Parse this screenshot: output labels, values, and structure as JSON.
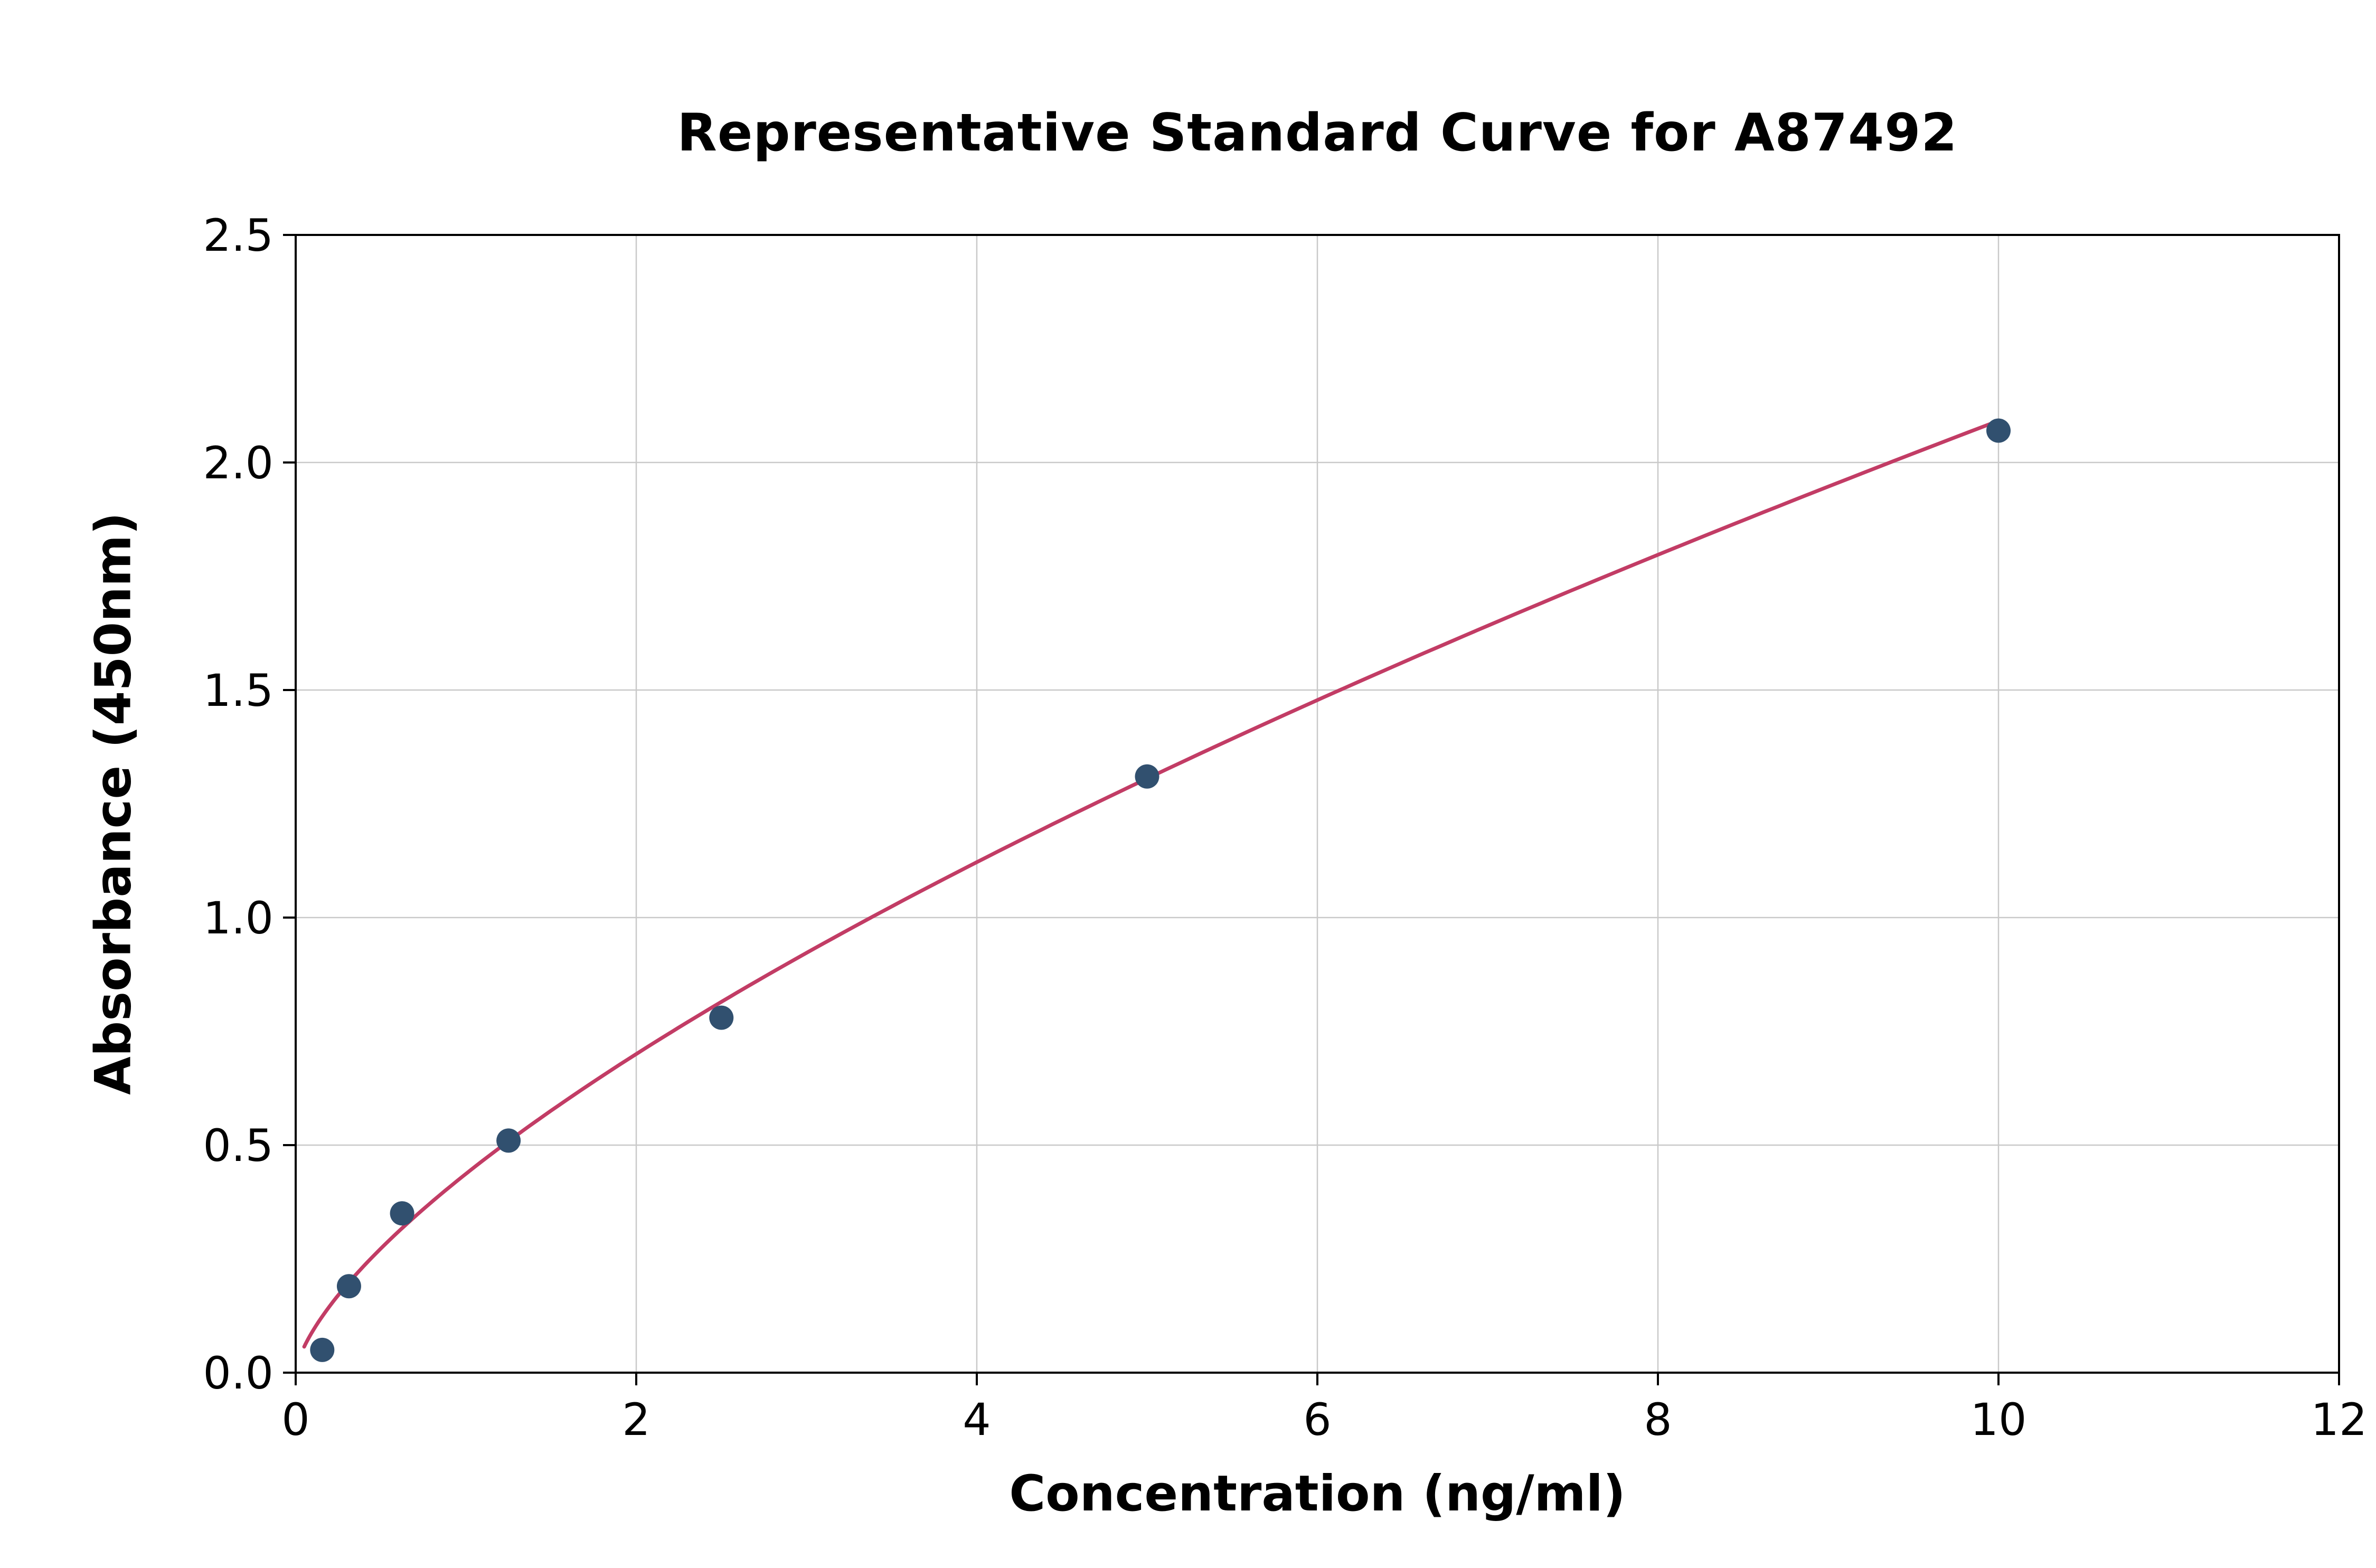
{
  "chart_data": {
    "type": "scatter",
    "title": "Representative Standard Curve for A87492",
    "xlabel": "Concentration (ng/ml)",
    "ylabel": "Absorbance (450nm)",
    "xlim": [
      0,
      12
    ],
    "ylim": [
      0,
      2.5
    ],
    "grid": true,
    "legend": "none",
    "xticks": {
      "values": [
        0,
        2,
        4,
        6,
        8,
        10,
        12
      ],
      "labels": [
        "0",
        "2",
        "4",
        "6",
        "8",
        "10",
        "12"
      ]
    },
    "yticks": {
      "values": [
        0,
        0.5,
        1.0,
        1.5,
        2.0,
        2.5
      ],
      "labels": [
        "0.0",
        "0.5",
        "1.0",
        "1.5",
        "2.0",
        "2.5"
      ]
    },
    "points": [
      {
        "x": 0.156,
        "y": 0.05
      },
      {
        "x": 0.313,
        "y": 0.19
      },
      {
        "x": 0.625,
        "y": 0.35
      },
      {
        "x": 1.25,
        "y": 0.51
      },
      {
        "x": 2.5,
        "y": 0.78
      },
      {
        "x": 5.0,
        "y": 1.31
      },
      {
        "x": 10.0,
        "y": 2.07
      }
    ],
    "fit_curve": {
      "type": "power",
      "a": 0.437,
      "b": 0.68,
      "x_start": 0.05,
      "x_end": 10.0
    },
    "colors": {
      "point": "#31506f",
      "curve": "#c23c65",
      "grid": "#c9c9c9",
      "axis": "#000000",
      "background": "#ffffff"
    }
  }
}
